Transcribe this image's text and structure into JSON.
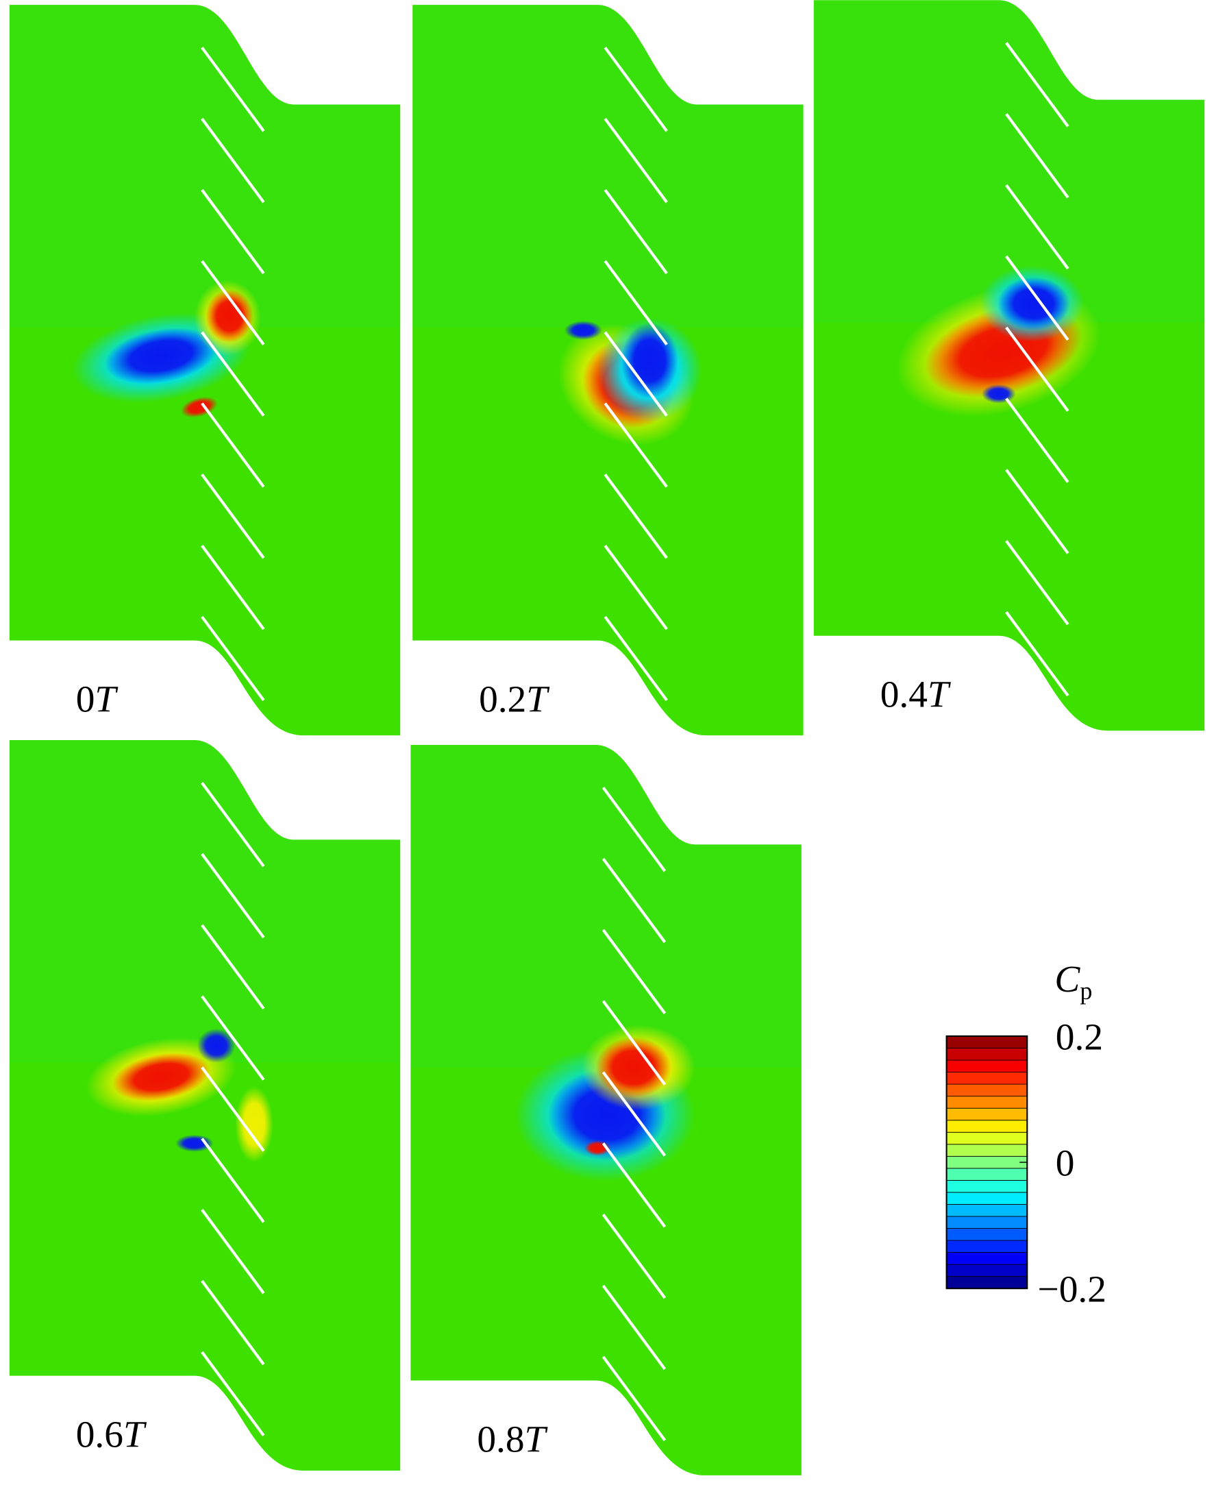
{
  "panels": [
    {
      "time": "0",
      "unit": "T"
    },
    {
      "time": "0.2",
      "unit": "T"
    },
    {
      "time": "0.4",
      "unit": "T"
    },
    {
      "time": "0.6",
      "unit": "T"
    },
    {
      "time": "0.8",
      "unit": "T"
    }
  ],
  "colorbar": {
    "symbol": "C",
    "subscript": "p",
    "range": [
      -0.2,
      0.2
    ],
    "levels": 21,
    "ticks": [
      0.2,
      0,
      {
        "value": -0.2,
        "label": "−0.2"
      }
    ]
  }
}
